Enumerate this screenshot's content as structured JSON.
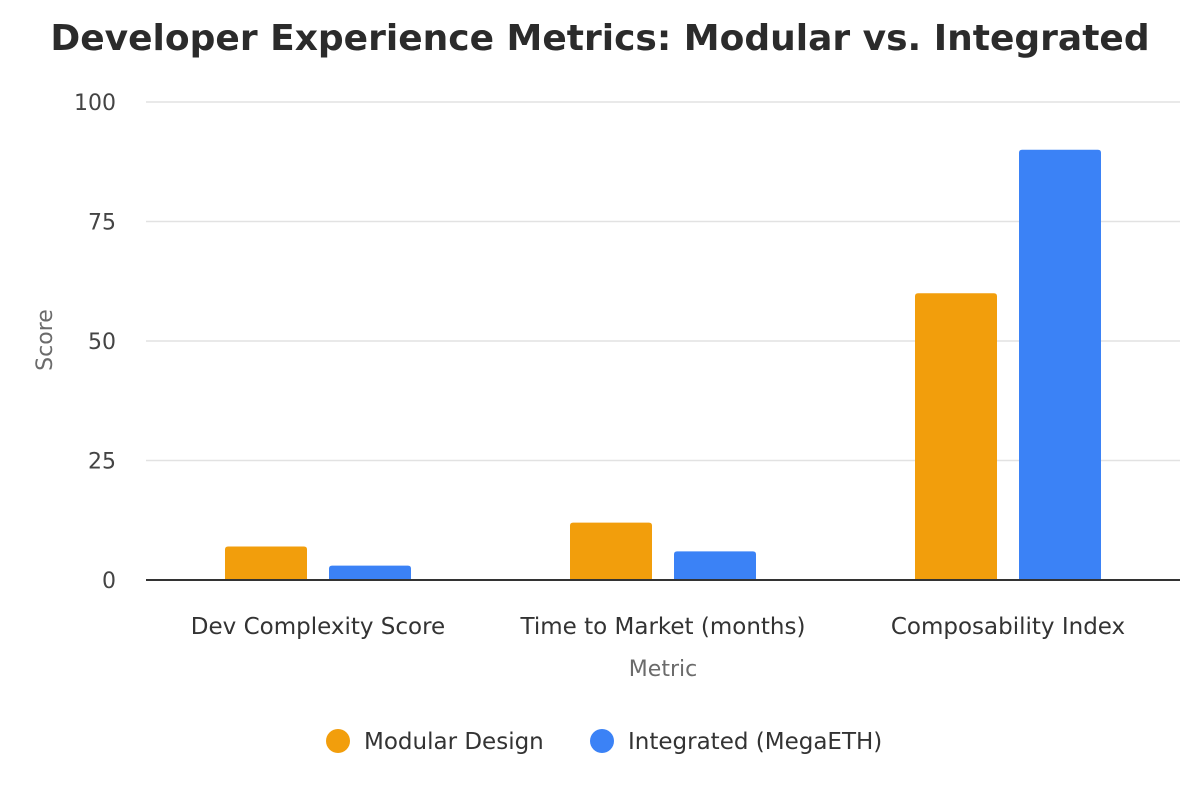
{
  "chart_data": {
    "type": "bar",
    "title": "Developer Experience Metrics: Modular vs. Integrated",
    "xlabel": "Metric",
    "ylabel": "Score",
    "categories": [
      "Dev Complexity Score",
      "Time to Market (months)",
      "Composability Index"
    ],
    "series": [
      {
        "name": "Modular Design",
        "color": "#F29E0C",
        "values": [
          7,
          12,
          60
        ]
      },
      {
        "name": "Integrated (MegaETH)",
        "color": "#3B82F6",
        "values": [
          3,
          6,
          90
        ]
      }
    ],
    "ylim": [
      0,
      100
    ],
    "yticks": [
      0,
      25,
      50,
      75,
      100
    ],
    "grid": true,
    "legend_position": "bottom-center"
  }
}
